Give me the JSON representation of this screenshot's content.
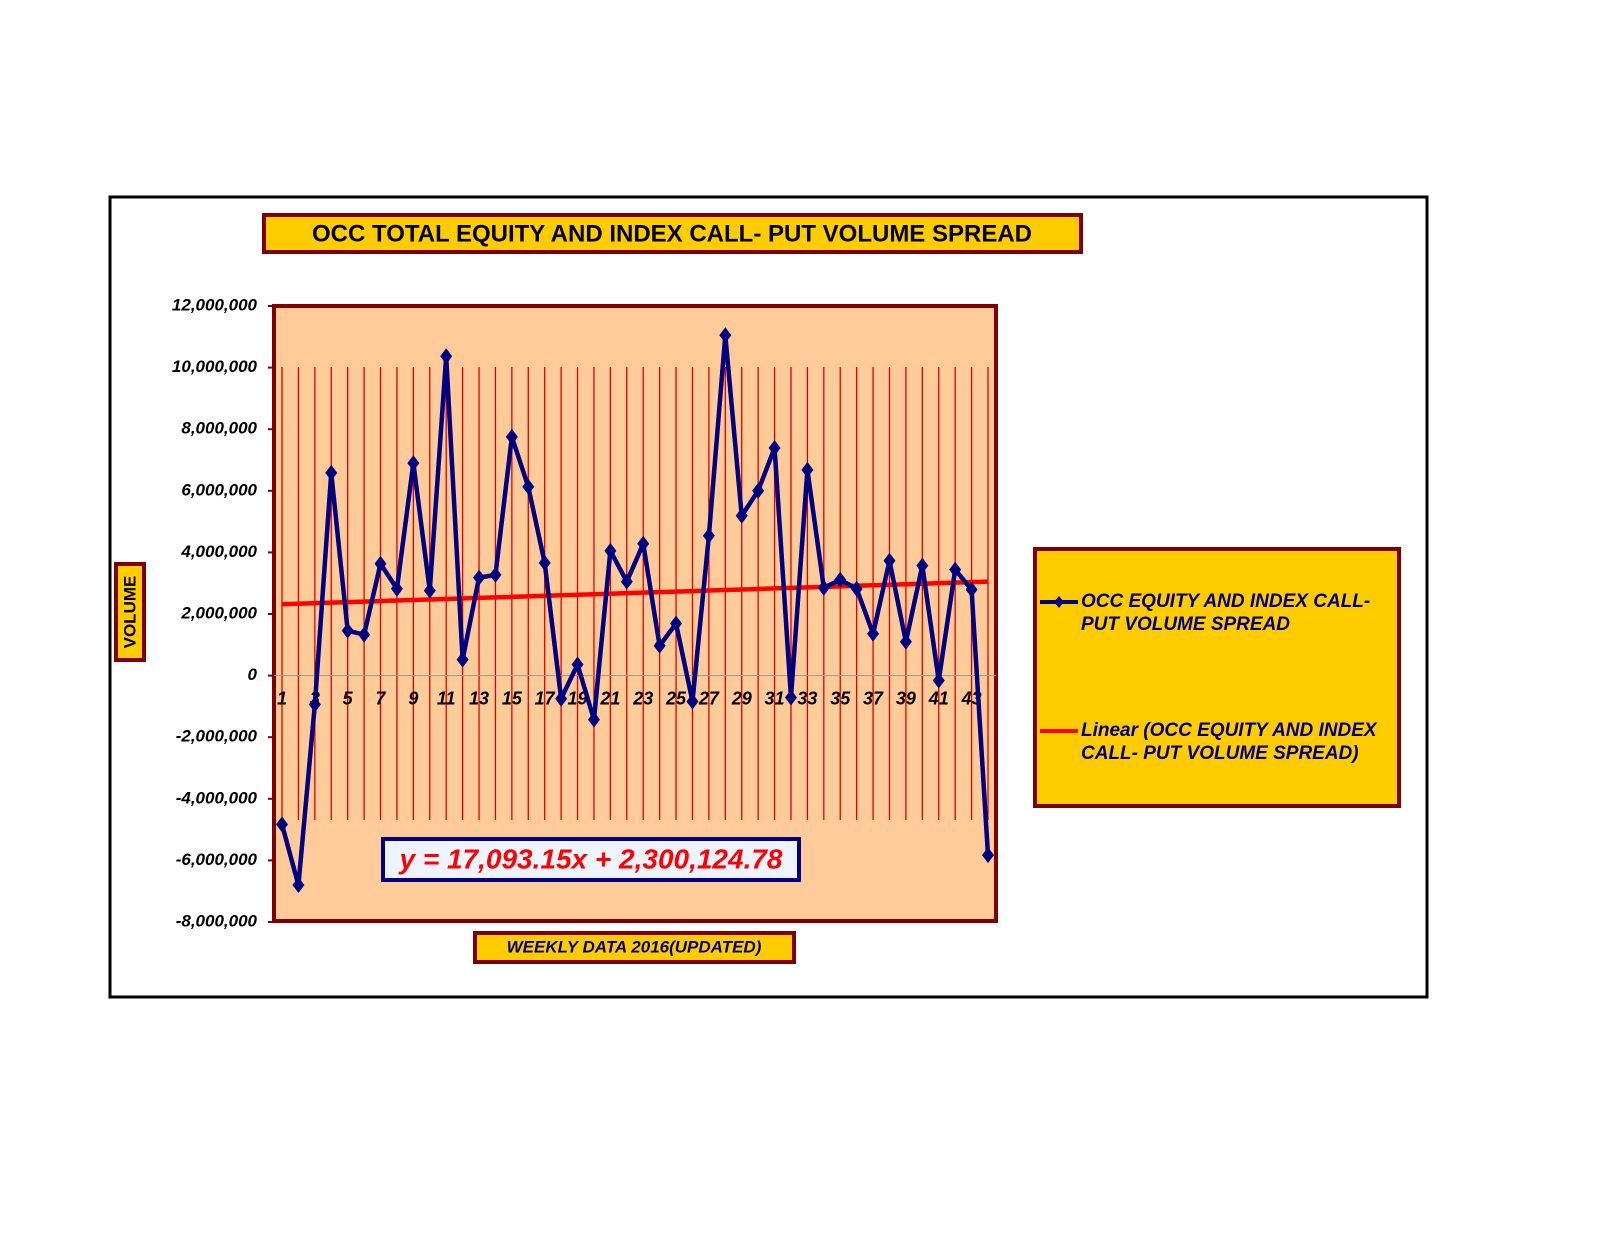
{
  "chart_data": {
    "type": "line",
    "title": "OCC TOTAL EQUITY AND INDEX CALL- PUT VOLUME SPREAD",
    "x_label": "WEEKLY DATA 2016(UPDATED)",
    "y_label": "VOLUME",
    "annotation": "y = 17,093.15x + 2,300,124.78",
    "categories": [
      "1",
      null,
      "3",
      null,
      "5",
      null,
      "7",
      null,
      "9",
      null,
      "11",
      null,
      "13",
      null,
      "15",
      null,
      "17",
      null,
      "19",
      null,
      "21",
      null,
      "23",
      null,
      "25",
      null,
      "27",
      null,
      "29",
      null,
      "31",
      null,
      "33",
      null,
      "35",
      null,
      "37",
      null,
      "39",
      null,
      "41",
      null,
      "43",
      null
    ],
    "series": [
      {
        "name": "OCC EQUITY AND INDEX CALL- PUT VOLUME SPREAD",
        "color": "#000080",
        "values": [
          -4830000,
          -6800000,
          -940000,
          6580000,
          1460000,
          1330000,
          3630000,
          2820000,
          6900000,
          2760000,
          10370000,
          520000,
          3180000,
          3270000,
          7750000,
          6130000,
          3660000,
          -750000,
          360000,
          -1430000,
          4050000,
          3050000,
          4280000,
          970000,
          1690000,
          -840000,
          4540000,
          11050000,
          5190000,
          6000000,
          7390000,
          -710000,
          6680000,
          2850000,
          3110000,
          2820000,
          1360000,
          3730000,
          1100000,
          3570000,
          -160000,
          3440000,
          2790000,
          -5830000
        ]
      },
      {
        "name": "Linear (OCC EQUITY AND INDEX CALL- PUT VOLUME SPREAD)",
        "color": "#ff0000",
        "values": [
          2317218,
          2334311,
          2351404,
          2368497,
          2385590,
          2402684,
          2419777,
          2436870,
          2453963,
          2471056,
          2488149,
          2505242,
          2522335,
          2539428,
          2556522,
          2573615,
          2590708,
          2607801,
          2624894,
          2641987,
          2659080,
          2676173,
          2693266,
          2710360,
          2727453,
          2744546,
          2761639,
          2778732,
          2795825,
          2812918,
          2830011,
          2847104,
          2864198,
          2881291,
          2898384,
          2915477,
          2932570,
          2949663,
          2966756,
          2983849,
          3000942,
          3018036,
          3035129,
          3052222
        ]
      }
    ],
    "ylim": [
      -8000000,
      12000000
    ],
    "yticks": [
      {
        "value": -8000000,
        "label": "-8,000,000"
      },
      {
        "value": -6000000,
        "label": "-6,000,000"
      },
      {
        "value": -4000000,
        "label": "-4,000,000"
      },
      {
        "value": -2000000,
        "label": "-2,000,000"
      },
      0,
      {
        "value": 2000000,
        "label": "2,000,000"
      },
      {
        "value": 4000000,
        "label": "4,000,000"
      },
      {
        "value": 6000000,
        "label": "6,000,000"
      },
      {
        "value": 8000000,
        "label": "8,000,000"
      },
      {
        "value": 10000000,
        "label": "10,000,000"
      },
      {
        "value": 12000000,
        "label": "12,000,000"
      }
    ],
    "grid": true,
    "legend": "right"
  }
}
